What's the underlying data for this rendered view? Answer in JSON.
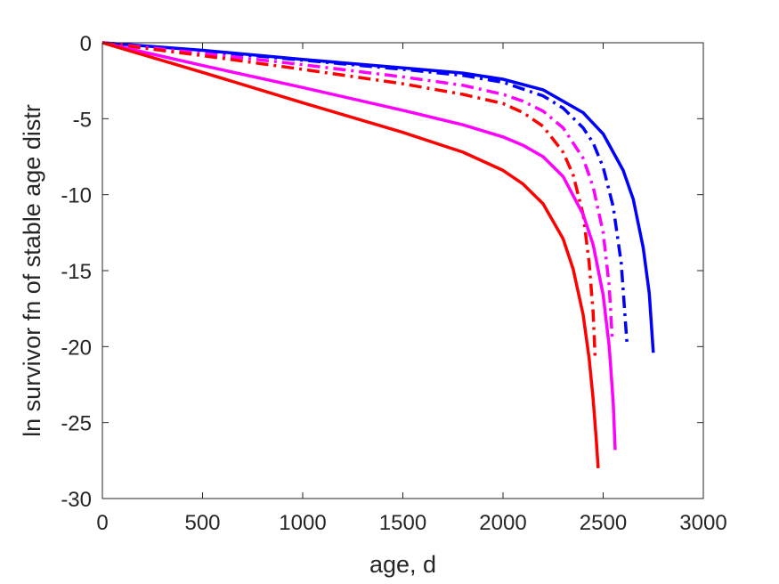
{
  "chart_data": {
    "type": "line",
    "title": "",
    "xlabel": "age, d",
    "ylabel": "ln survivor fn of stable age distr",
    "xlim": [
      0,
      3000
    ],
    "ylim": [
      -30,
      0
    ],
    "xticks": [
      0,
      500,
      1000,
      1500,
      2000,
      2500,
      3000
    ],
    "yticks": [
      0,
      -5,
      -10,
      -15,
      -20,
      -25,
      -30
    ],
    "xtick_labels": [
      "0",
      "500",
      "1000",
      "1500",
      "2000",
      "2500",
      "3000"
    ],
    "ytick_labels": [
      "0",
      "-5",
      "-10",
      "-15",
      "-20",
      "-25",
      "-30"
    ],
    "grid": false,
    "legend": "none",
    "series": [
      {
        "color": "#0000ff",
        "style": "solid",
        "x": [
          0,
          500,
          1000,
          1500,
          1800,
          2000,
          2200,
          2400,
          2500,
          2600,
          2650,
          2700,
          2730,
          2750
        ],
        "y": [
          0,
          -0.5,
          -1.1,
          -1.65,
          -2.0,
          -2.4,
          -3.1,
          -4.6,
          -6.0,
          -8.4,
          -10.3,
          -13.5,
          -16.5,
          -20.4
        ]
      },
      {
        "color": "#0000ff",
        "style": "dashdot",
        "x": [
          0,
          500,
          1000,
          1500,
          1800,
          2000,
          2200,
          2300,
          2400,
          2450,
          2500,
          2550,
          2590,
          2620
        ],
        "y": [
          0,
          -0.55,
          -1.15,
          -1.75,
          -2.15,
          -2.6,
          -3.5,
          -4.3,
          -5.6,
          -6.6,
          -8.2,
          -10.8,
          -14.5,
          -20.0
        ]
      },
      {
        "color": "#ff00ff",
        "style": "dashdot",
        "x": [
          0,
          500,
          1000,
          1500,
          1800,
          2000,
          2100,
          2200,
          2300,
          2400,
          2450,
          2500,
          2530,
          2545
        ],
        "y": [
          0,
          -0.7,
          -1.45,
          -2.25,
          -2.8,
          -3.4,
          -3.85,
          -4.5,
          -5.6,
          -7.6,
          -9.5,
          -12.5,
          -16.0,
          -19.4
        ]
      },
      {
        "color": "#ff0000",
        "style": "dashdot",
        "x": [
          0,
          500,
          1000,
          1500,
          1800,
          2000,
          2100,
          2200,
          2300,
          2350,
          2400,
          2430,
          2450,
          2460
        ],
        "y": [
          0,
          -0.85,
          -1.75,
          -2.7,
          -3.4,
          -4.0,
          -4.6,
          -5.5,
          -7.2,
          -8.7,
          -11.3,
          -14.5,
          -17.8,
          -20.8
        ]
      },
      {
        "color": "#ff00ff",
        "style": "solid",
        "x": [
          0,
          500,
          1000,
          1500,
          1800,
          2000,
          2100,
          2200,
          2300,
          2400,
          2450,
          2500,
          2530,
          2550,
          2560
        ],
        "y": [
          0,
          -1.5,
          -2.95,
          -4.45,
          -5.4,
          -6.2,
          -6.75,
          -7.5,
          -8.8,
          -11.3,
          -13.3,
          -16.6,
          -20.0,
          -23.7,
          -26.8
        ]
      },
      {
        "color": "#ff0000",
        "style": "solid",
        "x": [
          0,
          500,
          1000,
          1500,
          1800,
          2000,
          2100,
          2200,
          2300,
          2350,
          2400,
          2430,
          2450,
          2465,
          2475
        ],
        "y": [
          0,
          -1.95,
          -3.95,
          -5.9,
          -7.2,
          -8.4,
          -9.3,
          -10.6,
          -12.9,
          -14.9,
          -17.9,
          -20.8,
          -23.5,
          -26.0,
          -28.0
        ]
      }
    ]
  }
}
